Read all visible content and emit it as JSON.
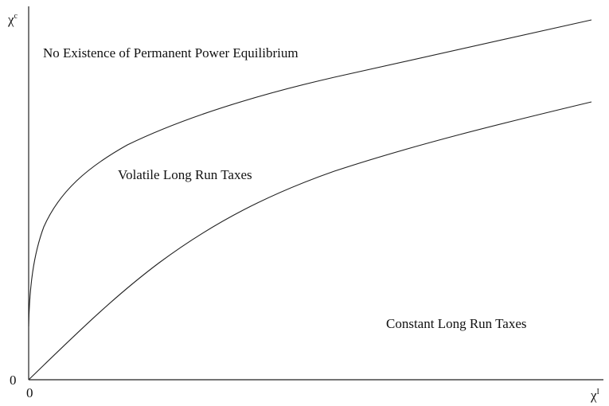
{
  "axes": {
    "y_label": "χ",
    "y_label_sup": "c",
    "y_origin": "0",
    "x_origin": "0",
    "x_label": "χ",
    "x_label_sup": "I"
  },
  "regions": [
    "No Existence of Permanent Power Equilibrium",
    "Volatile Long Run Taxes",
    "Constant Long Run Taxes"
  ]
}
